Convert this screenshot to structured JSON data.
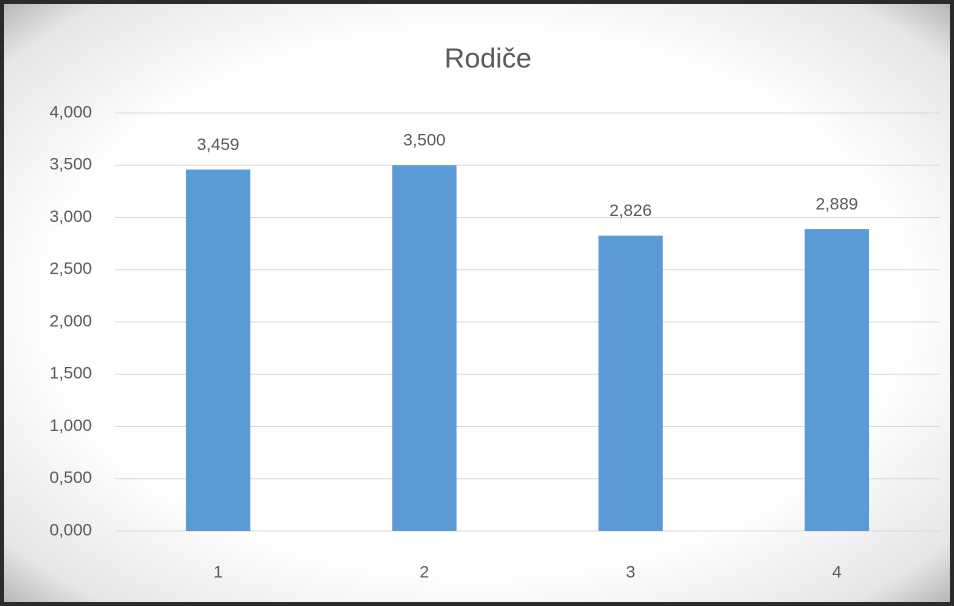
{
  "chart_data": {
    "type": "bar",
    "title": "Rodiče",
    "categories": [
      "1",
      "2",
      "3",
      "4"
    ],
    "values": [
      3.459,
      3.5,
      2.826,
      2.889
    ],
    "value_labels": [
      "3,459",
      "3,500",
      "2,826",
      "2,889"
    ],
    "color": "#5b9bd5",
    "ylim": [
      0,
      4
    ],
    "yticks": [
      {
        "value": 0,
        "label": "0,000"
      },
      {
        "value": 0.5,
        "label": "0,500"
      },
      {
        "value": 1,
        "label": "1,000"
      },
      {
        "value": 1.5,
        "label": "1,500"
      },
      {
        "value": 2,
        "label": "2,000"
      },
      {
        "value": 2.5,
        "label": "2,500"
      },
      {
        "value": 3,
        "label": "3,000"
      },
      {
        "value": 3.5,
        "label": "3,500"
      },
      {
        "value": 4,
        "label": "4,000"
      }
    ],
    "grid": true
  }
}
